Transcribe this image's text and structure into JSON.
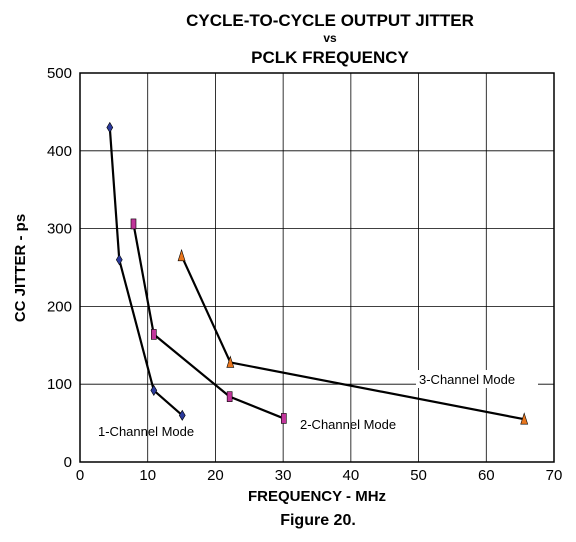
{
  "chart_data": {
    "type": "line",
    "title_lines": [
      "CYCLE-TO-CYCLE OUTPUT JITTER",
      "vs",
      "PCLK FREQUENCY"
    ],
    "xlabel": "FREQUENCY - MHz",
    "ylabel": "CC JITTER - ps",
    "caption": "Figure 20.",
    "xlim": [
      0,
      70
    ],
    "ylim": [
      0,
      500
    ],
    "x_ticks": [
      0,
      10,
      20,
      30,
      40,
      50,
      60,
      70
    ],
    "y_ticks": [
      0,
      100,
      200,
      300,
      400,
      500
    ],
    "grid": true,
    "series": [
      {
        "name": "1-Channel Mode",
        "color": "#2b3a9c",
        "marker": "diamond",
        "x": [
          4.4,
          5.8,
          10.9,
          15.1
        ],
        "y": [
          430,
          260,
          92,
          60
        ]
      },
      {
        "name": "2-Channel Mode",
        "color": "#c0359a",
        "marker": "square",
        "x": [
          7.9,
          10.9,
          22.1,
          30.1
        ],
        "y": [
          306,
          164,
          84,
          56
        ]
      },
      {
        "name": "3-Channel Mode",
        "color": "#e8761e",
        "marker": "triangle",
        "x": [
          15.0,
          22.2,
          65.6
        ],
        "y": [
          265,
          128,
          55
        ]
      }
    ]
  }
}
